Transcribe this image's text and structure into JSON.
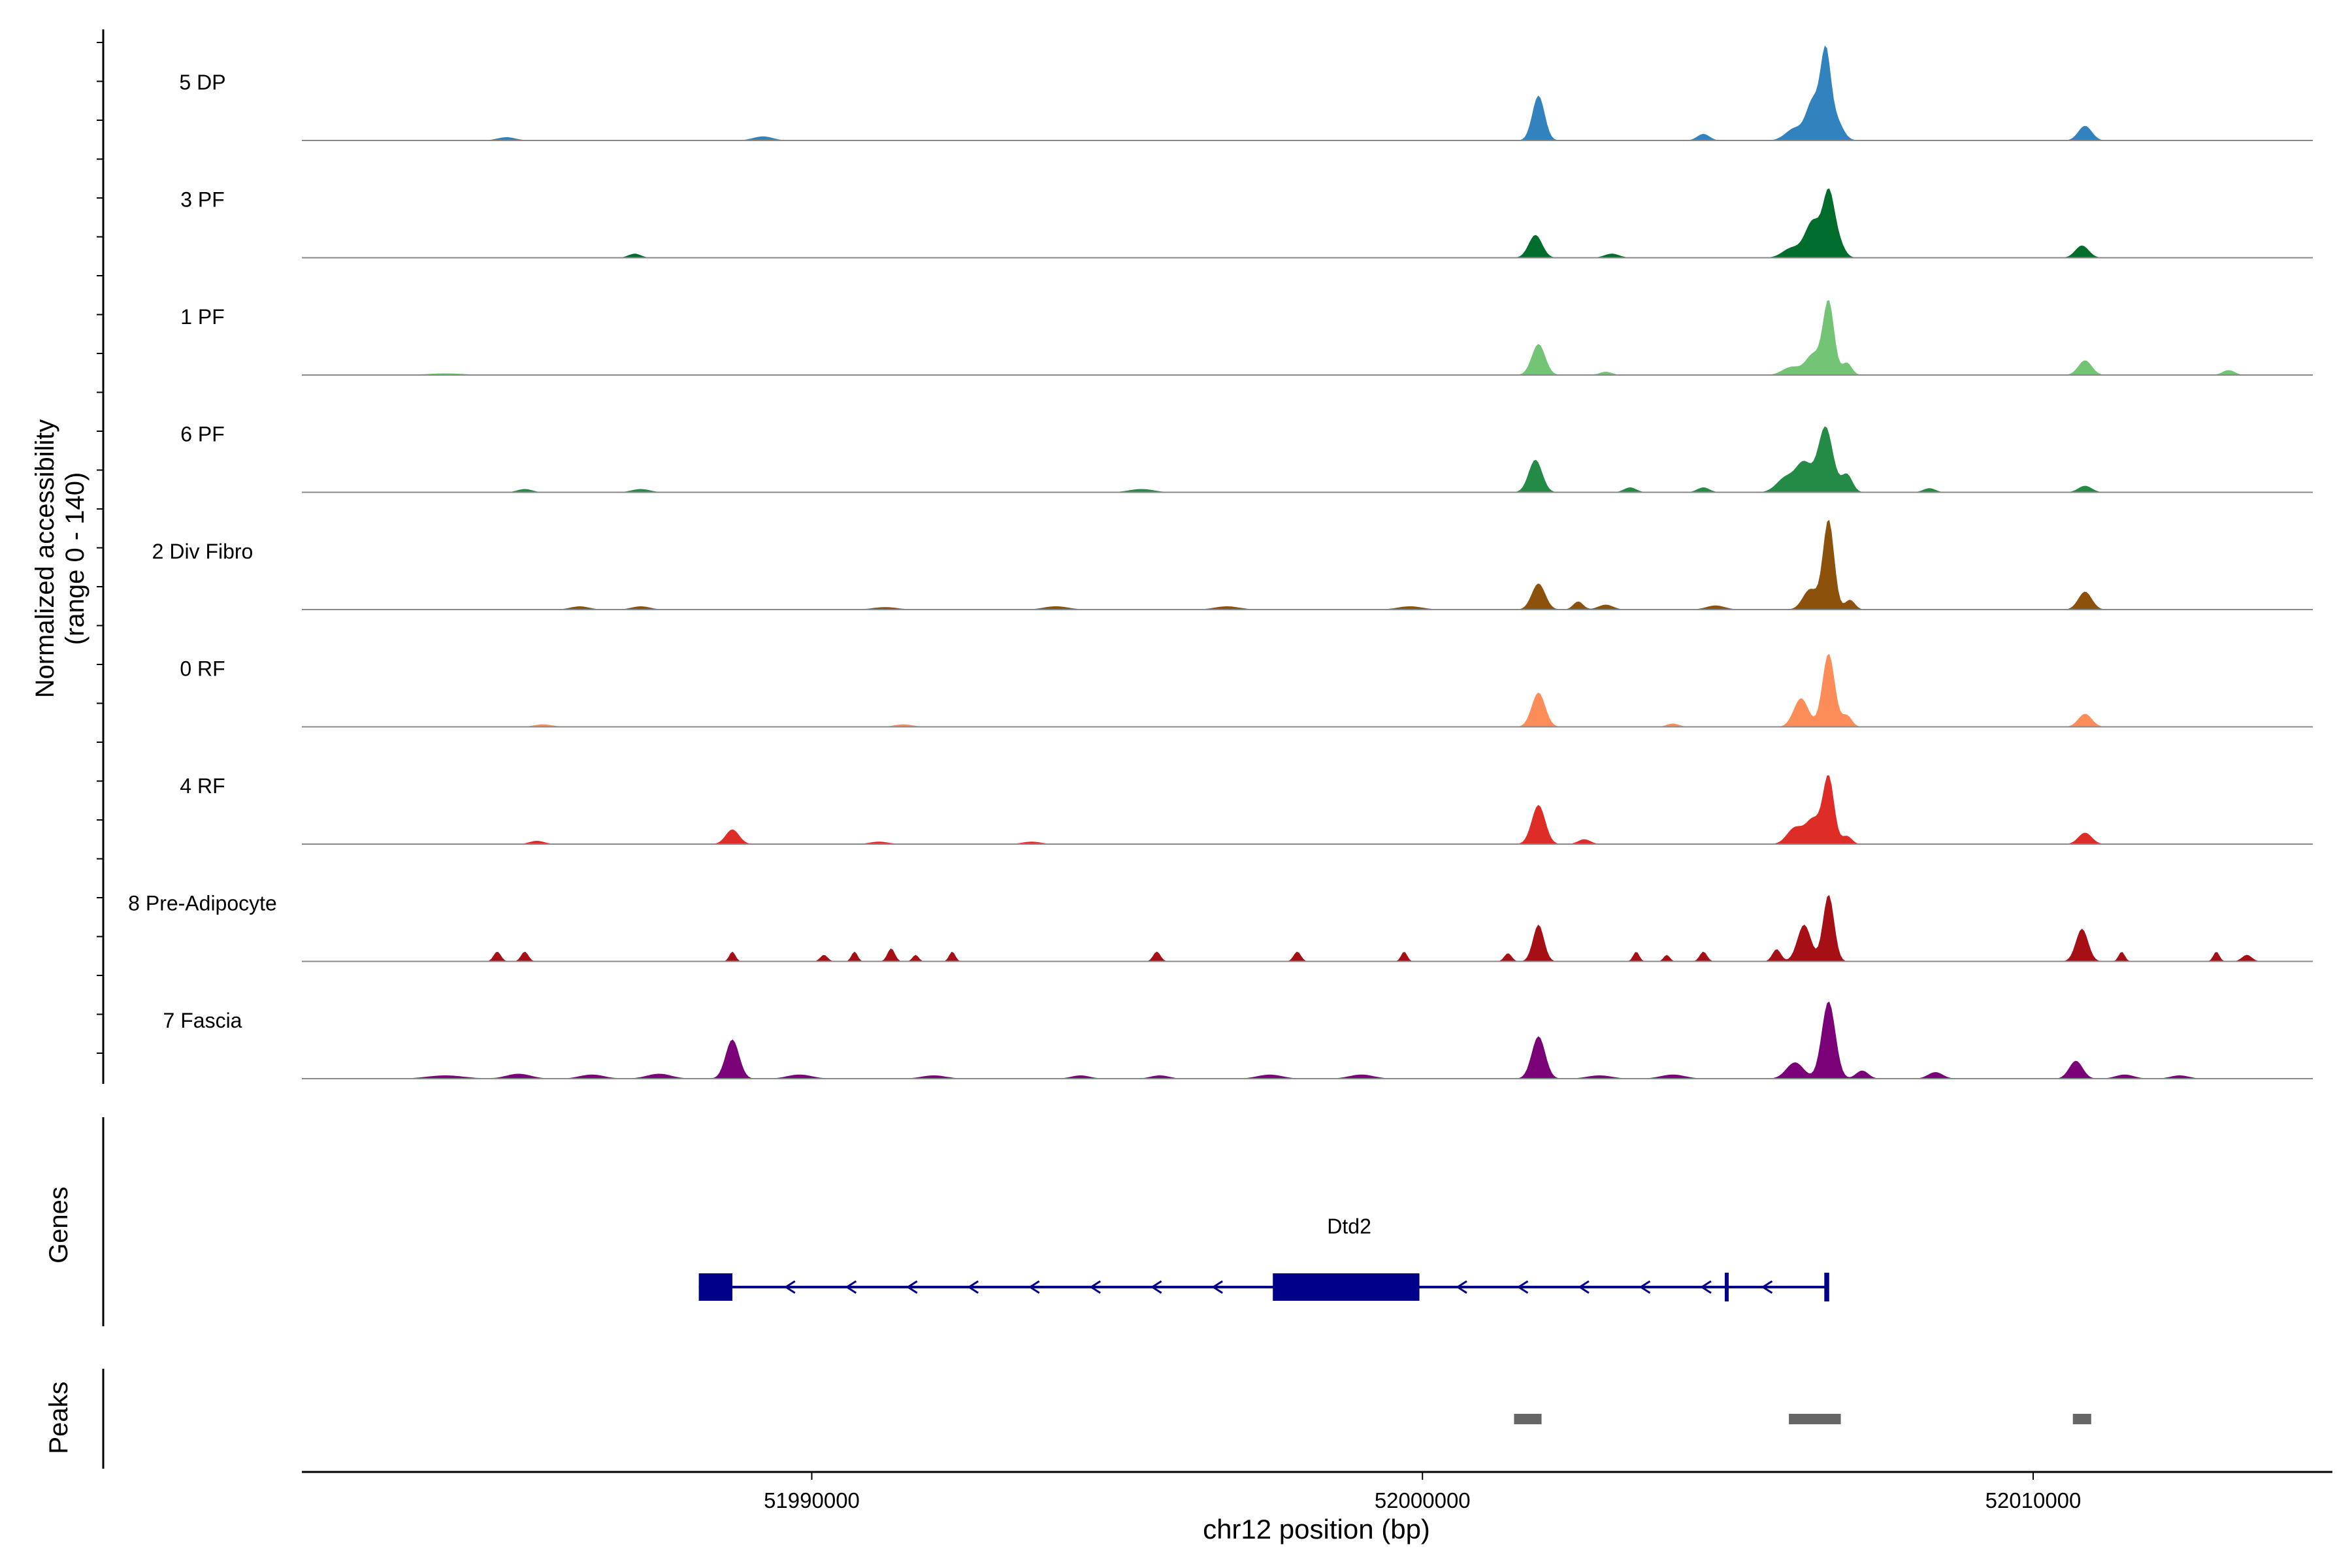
{
  "chart_data": {
    "type": "area",
    "title": "",
    "ylabel_main": "Normalized accessibility",
    "ylabel_sub": "(range 0 - 140)",
    "xlabel": "chr12 position (bp)",
    "xlim": [
      51981650,
      52014900
    ],
    "ylim": [
      0,
      140
    ],
    "x_ticks": [
      51990000,
      52000000,
      52010000
    ],
    "x_tick_labels": [
      "51990000",
      "52000000",
      "52010000"
    ],
    "tracks": [
      {
        "name": "5 DP",
        "color": "#3182bd",
        "peaks": [
          [
            51985000,
            4,
            150
          ],
          [
            51989200,
            5,
            160
          ],
          [
            52001900,
            55,
            100
          ],
          [
            52004600,
            8,
            100
          ],
          [
            52006100,
            15,
            150
          ],
          [
            52006400,
            48,
            110
          ],
          [
            52006600,
            95,
            80
          ],
          [
            52006750,
            28,
            120
          ],
          [
            52010850,
            18,
            110
          ]
        ]
      },
      {
        "name": "3 PF",
        "color": "#006d2c",
        "peaks": [
          [
            51987100,
            5,
            100
          ],
          [
            52001850,
            28,
            110
          ],
          [
            52003100,
            5,
            120
          ],
          [
            52006050,
            12,
            150
          ],
          [
            52006400,
            45,
            130
          ],
          [
            52006650,
            72,
            90
          ],
          [
            52006800,
            20,
            100
          ],
          [
            52010800,
            15,
            110
          ]
        ]
      },
      {
        "name": "1 PF",
        "color": "#74c476",
        "peaks": [
          [
            51984000,
            2,
            300
          ],
          [
            52001900,
            38,
            110
          ],
          [
            52003000,
            4,
            100
          ],
          [
            52006050,
            10,
            150
          ],
          [
            52006400,
            25,
            120
          ],
          [
            52006650,
            90,
            90
          ],
          [
            52006950,
            15,
            80
          ],
          [
            52010850,
            18,
            110
          ],
          [
            52013200,
            6,
            100
          ]
        ]
      },
      {
        "name": "6 PF",
        "color": "#238b45",
        "peaks": [
          [
            51985300,
            4,
            120
          ],
          [
            51987200,
            4,
            150
          ],
          [
            51995400,
            4,
            200
          ],
          [
            52001850,
            40,
            110
          ],
          [
            52003400,
            6,
            100
          ],
          [
            52004600,
            6,
            100
          ],
          [
            52005950,
            18,
            150
          ],
          [
            52006250,
            35,
            130
          ],
          [
            52006600,
            80,
            120
          ],
          [
            52006950,
            22,
            90
          ],
          [
            52008300,
            5,
            100
          ],
          [
            52010850,
            8,
            110
          ]
        ]
      },
      {
        "name": "2 Div Fibro",
        "color": "#8c510a",
        "peaks": [
          [
            51986200,
            4,
            150
          ],
          [
            51987200,
            4,
            150
          ],
          [
            51991200,
            3,
            200
          ],
          [
            51994000,
            4,
            200
          ],
          [
            51996800,
            4,
            200
          ],
          [
            51999800,
            4,
            200
          ],
          [
            52001900,
            32,
            110
          ],
          [
            52002550,
            10,
            80
          ],
          [
            52003000,
            6,
            120
          ],
          [
            52004800,
            5,
            150
          ],
          [
            52006350,
            25,
            120
          ],
          [
            52006650,
            110,
            90
          ],
          [
            52007000,
            12,
            80
          ],
          [
            52010850,
            22,
            110
          ]
        ]
      },
      {
        "name": "0 RF",
        "color": "#fc8d59",
        "peaks": [
          [
            51985600,
            3,
            150
          ],
          [
            51991500,
            3,
            150
          ],
          [
            52001900,
            42,
            110
          ],
          [
            52004100,
            4,
            100
          ],
          [
            52006200,
            35,
            120
          ],
          [
            52006650,
            90,
            100
          ],
          [
            52006950,
            14,
            80
          ],
          [
            52010850,
            16,
            110
          ]
        ]
      },
      {
        "name": "4 RF",
        "color": "#de2d26",
        "peaks": [
          [
            51985500,
            4,
            120
          ],
          [
            51988700,
            18,
            110
          ],
          [
            51991100,
            3,
            150
          ],
          [
            51993600,
            3,
            150
          ],
          [
            52001900,
            48,
            110
          ],
          [
            52002650,
            6,
            100
          ],
          [
            52006100,
            20,
            130
          ],
          [
            52006400,
            30,
            120
          ],
          [
            52006650,
            82,
            90
          ],
          [
            52006950,
            10,
            80
          ],
          [
            52010850,
            14,
            110
          ]
        ]
      },
      {
        "name": "8 Pre-Adipocyte",
        "color": "#a50f15",
        "peaks": [
          [
            51984850,
            12,
            60
          ],
          [
            51985300,
            12,
            60
          ],
          [
            51988700,
            12,
            50
          ],
          [
            51990200,
            8,
            60
          ],
          [
            51990700,
            12,
            50
          ],
          [
            51991300,
            16,
            60
          ],
          [
            51991700,
            8,
            50
          ],
          [
            51992300,
            12,
            50
          ],
          [
            51995650,
            12,
            60
          ],
          [
            51997950,
            12,
            60
          ],
          [
            51999700,
            12,
            50
          ],
          [
            52001400,
            10,
            60
          ],
          [
            52001900,
            45,
            90
          ],
          [
            52003500,
            12,
            50
          ],
          [
            52004000,
            8,
            50
          ],
          [
            52004600,
            12,
            60
          ],
          [
            52005800,
            15,
            70
          ],
          [
            52006250,
            45,
            110
          ],
          [
            52006650,
            82,
            90
          ],
          [
            52010800,
            40,
            100
          ],
          [
            52011450,
            12,
            50
          ],
          [
            52013000,
            12,
            50
          ],
          [
            52013500,
            8,
            80
          ]
        ]
      },
      {
        "name": "7 Fascia",
        "color": "#7a0177",
        "peaks": [
          [
            51984000,
            4,
            300
          ],
          [
            51985200,
            6,
            200
          ],
          [
            51986400,
            5,
            200
          ],
          [
            51987500,
            6,
            200
          ],
          [
            51988700,
            48,
            110
          ],
          [
            51989800,
            5,
            200
          ],
          [
            51992000,
            4,
            200
          ],
          [
            51994400,
            4,
            150
          ],
          [
            51995700,
            4,
            150
          ],
          [
            51997500,
            5,
            200
          ],
          [
            51999000,
            5,
            200
          ],
          [
            52001900,
            52,
            110
          ],
          [
            52002900,
            4,
            200
          ],
          [
            52004100,
            5,
            200
          ],
          [
            52006100,
            20,
            140
          ],
          [
            52006650,
            95,
            110
          ],
          [
            52007200,
            10,
            100
          ],
          [
            52008400,
            8,
            120
          ],
          [
            52010700,
            22,
            110
          ],
          [
            52011500,
            5,
            150
          ],
          [
            52012400,
            4,
            150
          ]
        ]
      }
    ],
    "genes": {
      "label": "Genes",
      "name": "Dtd2",
      "color": "#00008b",
      "strand": "-",
      "start": 51988150,
      "end": 52006650,
      "exons": [
        [
          51988150,
          51988700
        ],
        [
          51997550,
          51999950
        ],
        [
          52004950,
          52005010
        ],
        [
          52006580,
          52006660
        ]
      ]
    },
    "peaks": {
      "label": "Peaks",
      "color": "#666666",
      "regions": [
        [
          52001500,
          52001950
        ],
        [
          52006000,
          52006850
        ],
        [
          52010650,
          52010950
        ]
      ]
    }
  }
}
